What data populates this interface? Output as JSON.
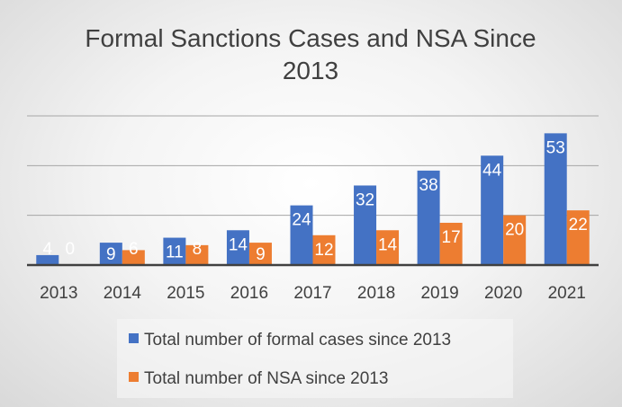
{
  "chart_data": {
    "type": "bar",
    "title_lines": [
      "Formal Sanctions Cases and NSA Since",
      "2013"
    ],
    "categories": [
      "2013",
      "2014",
      "2015",
      "2016",
      "2017",
      "2018",
      "2019",
      "2020",
      "2021"
    ],
    "series": [
      {
        "name": "Total number of formal cases since 2013",
        "color": "#4472c4",
        "values": [
          4,
          9,
          11,
          14,
          24,
          32,
          38,
          44,
          53
        ]
      },
      {
        "name": "Total number of NSA since 2013",
        "color": "#ed7d31",
        "values": [
          0,
          6,
          8,
          9,
          12,
          14,
          17,
          20,
          22
        ]
      }
    ],
    "ylim": [
      0,
      60
    ],
    "gridlines": [
      20,
      40,
      60
    ],
    "grid": true,
    "legend_position": "bottom",
    "xlabel": "",
    "ylabel": ""
  }
}
